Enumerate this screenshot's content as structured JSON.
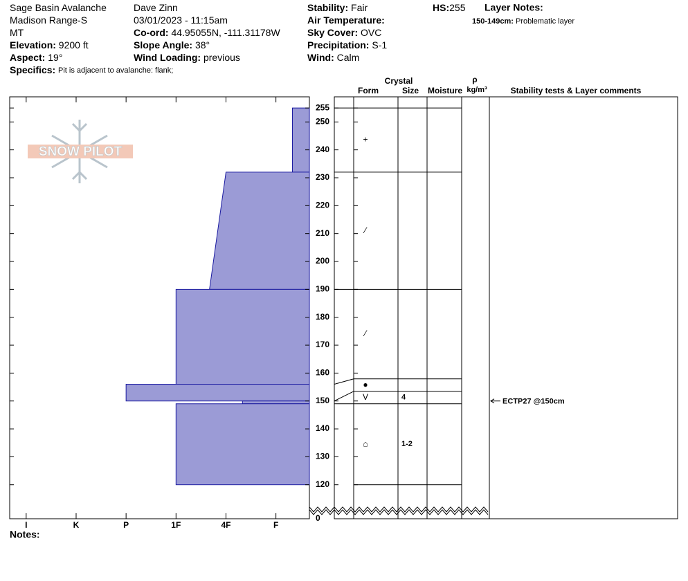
{
  "header": {
    "col1": [
      {
        "value": "Sage Basin Avalanche"
      },
      {
        "value": "Madison Range-S"
      },
      {
        "value": "MT"
      },
      {
        "label": "Elevation:",
        "value": "9200 ft"
      },
      {
        "label": "Aspect:",
        "value": "19°"
      }
    ],
    "col2": [
      {
        "value": "Dave Zinn"
      },
      {
        "value": "03/01/2023 - 11:15am"
      },
      {
        "label": "Co-ord:",
        "value": "44.95055N, -111.31178W"
      },
      {
        "label": "Slope Angle:",
        "value": "38°"
      },
      {
        "label": "Wind Loading:",
        "value": "previous"
      }
    ],
    "col3": [
      {
        "label": "Stability:",
        "value": "Fair"
      },
      {
        "label": "Air Temperature:"
      },
      {
        "label": "Sky Cover:",
        "value": "OVC"
      },
      {
        "label": "Precipitation:",
        "value": "S-1"
      },
      {
        "label": "Wind:",
        "value": "Calm"
      }
    ],
    "hs": {
      "label": "HS:",
      "value": 255
    },
    "layer_notes": {
      "label": "Layer Notes:",
      "items": [
        {
          "range": "150-149cm:",
          "text": "Problematic layer"
        }
      ]
    },
    "specifics": {
      "label": "Specifics:",
      "value": "Pit is adjacent to avalanche: flank;"
    }
  },
  "profile": {
    "logo": "SNOW PILOT",
    "hardness_lim": [
      6.33,
      0.33
    ],
    "hardness_ticks": [
      {
        "value": 6,
        "label": "I"
      },
      {
        "value": 5,
        "label": "K"
      },
      {
        "value": 4,
        "label": "P"
      },
      {
        "value": 3,
        "label": "1F"
      },
      {
        "value": 2,
        "label": "4F"
      },
      {
        "value": 1,
        "label": "F"
      }
    ],
    "ylim": [
      113,
      259
    ],
    "axis_break": [
      0,
      113
    ],
    "yticks": [
      0,
      120,
      130,
      140,
      150,
      160,
      170,
      180,
      190,
      200,
      210,
      220,
      230,
      240,
      250,
      255
    ],
    "columns": {
      "crystal": "Crystal",
      "form": "Form",
      "size": "Size",
      "moisture": "Moisture",
      "rho": "ρ",
      "density_unit": "kg/m³",
      "tests": "Stability tests & Layer comments"
    },
    "layers": [
      {
        "top": 255,
        "bottom": 232,
        "hardness": 0.67,
        "form": "+"
      },
      {
        "top": 232,
        "bottom": 190,
        "hardness": 2,
        "hardness_bottom": 2.33,
        "form": "⁄"
      },
      {
        "top": 190,
        "bottom": 156,
        "hardness": 3,
        "form": "⁄"
      },
      {
        "top": 156,
        "bottom": 150,
        "hardness": 4,
        "form": "●"
      },
      {
        "top": 150,
        "bottom": 149,
        "hardness": 1.67,
        "form": "V",
        "size": "4"
      },
      {
        "top": 149,
        "bottom": 120,
        "hardness": 3,
        "form": "⌂",
        "size": "1-2"
      }
    ],
    "tests": [
      {
        "depth": 150,
        "label": "ECTP27 @150cm"
      }
    ]
  },
  "notes": "Notes:"
}
